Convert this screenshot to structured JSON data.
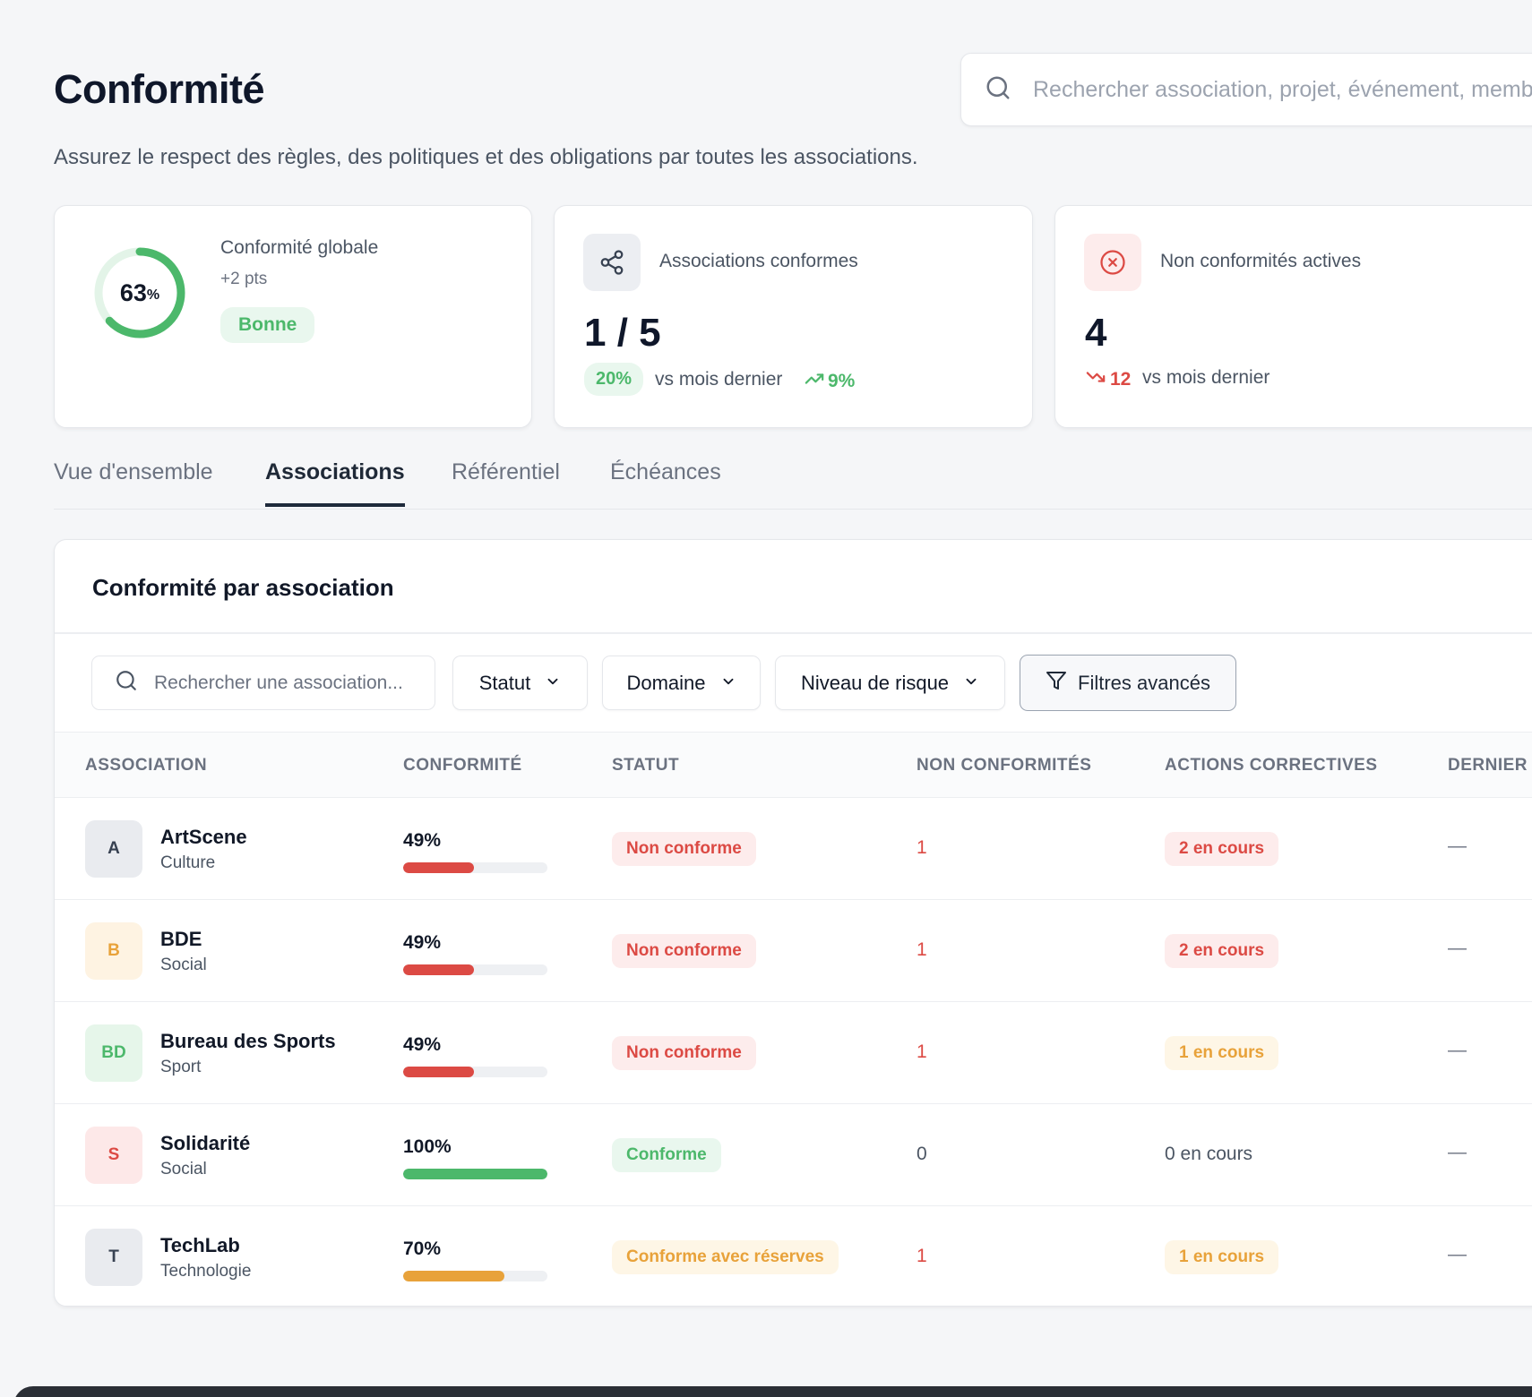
{
  "header": {
    "title": "Conformité",
    "subtitle": "Assurez le respect des règles, des politiques et des obligations par toutes les associations.",
    "search_placeholder": "Rechercher association, projet, événement, membre..."
  },
  "kpis": {
    "global": {
      "value": "63",
      "unit": "%",
      "progress": 0.63,
      "title": "Conformité globale",
      "delta": "+2 pts",
      "status": "Bonne"
    },
    "compliant": {
      "label": "Associations conformes",
      "value": "1 / 5",
      "pct": "20%",
      "vs": "vs mois dernier",
      "trend": "9%"
    },
    "active_nc": {
      "label": "Non conformités actives",
      "value": "4",
      "trend": "12",
      "vs": "vs mois dernier"
    }
  },
  "tabs": [
    "Vue d'ensemble",
    "Associations",
    "Référentiel",
    "Échéances"
  ],
  "active_tab": "Associations",
  "panel": {
    "title": "Conformité par association",
    "search_placeholder": "Rechercher une association...",
    "filters": {
      "status": "Statut",
      "domain": "Domaine",
      "risk": "Niveau de risque",
      "advanced": "Filtres avancés"
    }
  },
  "table": {
    "columns": [
      "ASSOCIATION",
      "CONFORMITÉ",
      "STATUT",
      "NON CONFORMITÉS",
      "ACTIONS CORRECTIVES",
      "DERNIER"
    ],
    "rows": [
      {
        "initials": "A",
        "name": "ArtScene",
        "domain": "Culture",
        "compliance": "49%",
        "level": 49,
        "status": "Non conforme",
        "nc": "1",
        "actions": "2 en cours",
        "last": "—"
      },
      {
        "initials": "B",
        "name": "BDE",
        "domain": "Social",
        "compliance": "49%",
        "level": 49,
        "status": "Non conforme",
        "nc": "1",
        "actions": "2 en cours",
        "last": "—"
      },
      {
        "initials": "BD",
        "name": "Bureau des Sports",
        "domain": "Sport",
        "compliance": "49%",
        "level": 49,
        "status": "Non conforme",
        "nc": "1",
        "actions": "1 en cours",
        "last": "—"
      },
      {
        "initials": "S",
        "name": "Solidarité",
        "domain": "Social",
        "compliance": "100%",
        "level": 100,
        "status": "Conforme",
        "nc": "0",
        "actions": "0 en cours",
        "last": "—"
      },
      {
        "initials": "T",
        "name": "TechLab",
        "domain": "Technologie",
        "compliance": "70%",
        "level": 70,
        "status": "Conforme avec réserves",
        "nc": "1",
        "actions": "1 en cours",
        "last": "—"
      }
    ]
  },
  "colors": {
    "red": "#dc4a44",
    "green": "#4cb86b",
    "amber": "#e8a23a",
    "navy": "#1e2a3b"
  },
  "icons": [
    "search-icon",
    "share-icon",
    "x-circle-icon",
    "trend-up-icon",
    "trend-down-icon",
    "chevron-down-icon",
    "filter-icon"
  ]
}
